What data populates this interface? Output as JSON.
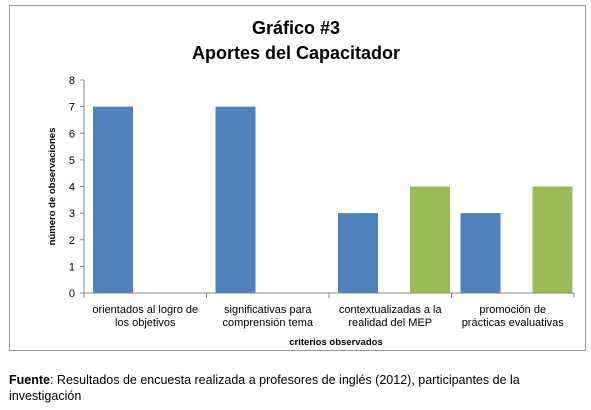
{
  "chart_data": {
    "type": "bar",
    "title_line1": "Gráfico #3",
    "title_line2": "Aportes del Capacitador",
    "xlabel": "criterios observados",
    "ylabel": "número de observaciones",
    "ylim": [
      0,
      8
    ],
    "yticks": [
      "0",
      "1",
      "2",
      "3",
      "4",
      "5",
      "6",
      "7",
      "8"
    ],
    "grid": false,
    "legend": "none",
    "categories": [
      [
        "orientados al logro de",
        "los objetivos"
      ],
      [
        "significativas para",
        "comprensión tema"
      ],
      [
        "contextualizadas a la",
        "realidad del MEP"
      ],
      [
        "promoción de",
        "prácticas evaluativas"
      ]
    ],
    "series": [
      {
        "color": "#4f81bd",
        "values": [
          7,
          7,
          3,
          3
        ]
      },
      {
        "color": "#9bbb59",
        "values": [
          0,
          0,
          4,
          4
        ]
      }
    ]
  },
  "caption": {
    "bold": "Fuente",
    "text": ": Resultados de encuesta realizada a profesores de inglés (2012), participantes de la investigación"
  }
}
